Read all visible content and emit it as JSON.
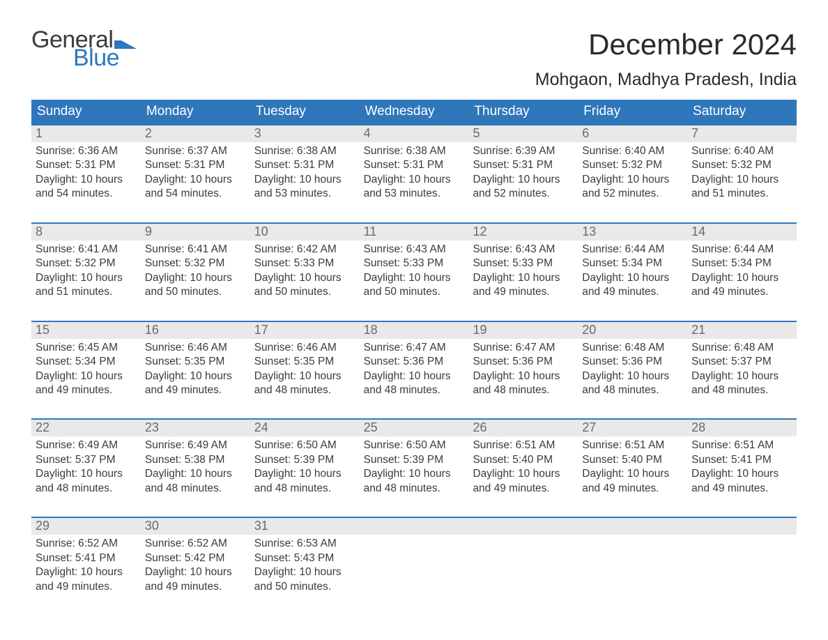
{
  "brand": {
    "word1": "General",
    "word2": "Blue",
    "accent_color": "#2b78c2"
  },
  "title": "December 2024",
  "location": "Mohgaon, Madhya Pradesh, India",
  "colors": {
    "header_bg": "#2f77bb",
    "header_text": "#ffffff",
    "daynum_bg": "#e9e9e9",
    "daynum_text": "#6a6a6a",
    "body_text": "#3b3b3b",
    "week_border": "#2f77bb"
  },
  "dow": [
    "Sunday",
    "Monday",
    "Tuesday",
    "Wednesday",
    "Thursday",
    "Friday",
    "Saturday"
  ],
  "labels": {
    "sunrise": "Sunrise:",
    "sunset": "Sunset:",
    "daylight": "Daylight:",
    "and": "and",
    "hours_word": "hours",
    "minutes_suffix": "minutes."
  },
  "weeks": [
    [
      {
        "n": "1",
        "sunrise": "6:36 AM",
        "sunset": "5:31 PM",
        "dh": "10",
        "dm": "54"
      },
      {
        "n": "2",
        "sunrise": "6:37 AM",
        "sunset": "5:31 PM",
        "dh": "10",
        "dm": "54"
      },
      {
        "n": "3",
        "sunrise": "6:38 AM",
        "sunset": "5:31 PM",
        "dh": "10",
        "dm": "53"
      },
      {
        "n": "4",
        "sunrise": "6:38 AM",
        "sunset": "5:31 PM",
        "dh": "10",
        "dm": "53"
      },
      {
        "n": "5",
        "sunrise": "6:39 AM",
        "sunset": "5:31 PM",
        "dh": "10",
        "dm": "52"
      },
      {
        "n": "6",
        "sunrise": "6:40 AM",
        "sunset": "5:32 PM",
        "dh": "10",
        "dm": "52"
      },
      {
        "n": "7",
        "sunrise": "6:40 AM",
        "sunset": "5:32 PM",
        "dh": "10",
        "dm": "51"
      }
    ],
    [
      {
        "n": "8",
        "sunrise": "6:41 AM",
        "sunset": "5:32 PM",
        "dh": "10",
        "dm": "51"
      },
      {
        "n": "9",
        "sunrise": "6:41 AM",
        "sunset": "5:32 PM",
        "dh": "10",
        "dm": "50"
      },
      {
        "n": "10",
        "sunrise": "6:42 AM",
        "sunset": "5:33 PM",
        "dh": "10",
        "dm": "50"
      },
      {
        "n": "11",
        "sunrise": "6:43 AM",
        "sunset": "5:33 PM",
        "dh": "10",
        "dm": "50"
      },
      {
        "n": "12",
        "sunrise": "6:43 AM",
        "sunset": "5:33 PM",
        "dh": "10",
        "dm": "49"
      },
      {
        "n": "13",
        "sunrise": "6:44 AM",
        "sunset": "5:34 PM",
        "dh": "10",
        "dm": "49"
      },
      {
        "n": "14",
        "sunrise": "6:44 AM",
        "sunset": "5:34 PM",
        "dh": "10",
        "dm": "49"
      }
    ],
    [
      {
        "n": "15",
        "sunrise": "6:45 AM",
        "sunset": "5:34 PM",
        "dh": "10",
        "dm": "49"
      },
      {
        "n": "16",
        "sunrise": "6:46 AM",
        "sunset": "5:35 PM",
        "dh": "10",
        "dm": "49"
      },
      {
        "n": "17",
        "sunrise": "6:46 AM",
        "sunset": "5:35 PM",
        "dh": "10",
        "dm": "48"
      },
      {
        "n": "18",
        "sunrise": "6:47 AM",
        "sunset": "5:36 PM",
        "dh": "10",
        "dm": "48"
      },
      {
        "n": "19",
        "sunrise": "6:47 AM",
        "sunset": "5:36 PM",
        "dh": "10",
        "dm": "48"
      },
      {
        "n": "20",
        "sunrise": "6:48 AM",
        "sunset": "5:36 PM",
        "dh": "10",
        "dm": "48"
      },
      {
        "n": "21",
        "sunrise": "6:48 AM",
        "sunset": "5:37 PM",
        "dh": "10",
        "dm": "48"
      }
    ],
    [
      {
        "n": "22",
        "sunrise": "6:49 AM",
        "sunset": "5:37 PM",
        "dh": "10",
        "dm": "48"
      },
      {
        "n": "23",
        "sunrise": "6:49 AM",
        "sunset": "5:38 PM",
        "dh": "10",
        "dm": "48"
      },
      {
        "n": "24",
        "sunrise": "6:50 AM",
        "sunset": "5:39 PM",
        "dh": "10",
        "dm": "48"
      },
      {
        "n": "25",
        "sunrise": "6:50 AM",
        "sunset": "5:39 PM",
        "dh": "10",
        "dm": "48"
      },
      {
        "n": "26",
        "sunrise": "6:51 AM",
        "sunset": "5:40 PM",
        "dh": "10",
        "dm": "49"
      },
      {
        "n": "27",
        "sunrise": "6:51 AM",
        "sunset": "5:40 PM",
        "dh": "10",
        "dm": "49"
      },
      {
        "n": "28",
        "sunrise": "6:51 AM",
        "sunset": "5:41 PM",
        "dh": "10",
        "dm": "49"
      }
    ],
    [
      {
        "n": "29",
        "sunrise": "6:52 AM",
        "sunset": "5:41 PM",
        "dh": "10",
        "dm": "49"
      },
      {
        "n": "30",
        "sunrise": "6:52 AM",
        "sunset": "5:42 PM",
        "dh": "10",
        "dm": "49"
      },
      {
        "n": "31",
        "sunrise": "6:53 AM",
        "sunset": "5:43 PM",
        "dh": "10",
        "dm": "50"
      },
      null,
      null,
      null,
      null
    ]
  ]
}
